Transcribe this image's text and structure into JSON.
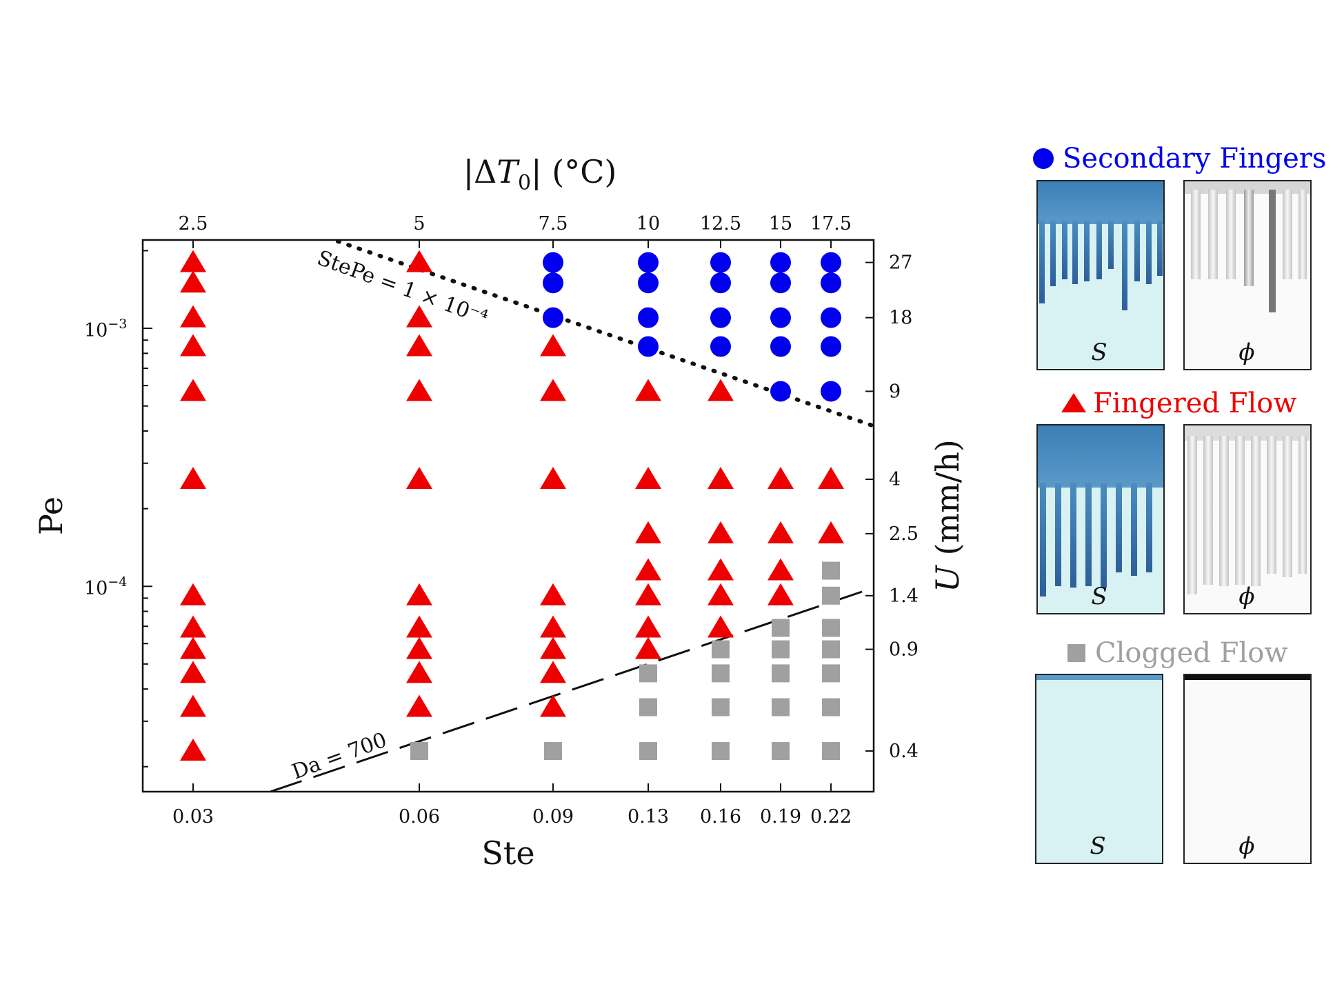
{
  "chart_data": {
    "type": "scatter",
    "x_axis": {
      "label": "Ste",
      "ticks": [
        "0.03",
        "0.06",
        "0.09",
        "0.13",
        "0.16",
        "0.19",
        "0.22"
      ],
      "scale": "log"
    },
    "top_axis": {
      "label": "|ΔT₀| (°C)",
      "ticks": [
        "2.5",
        "5",
        "7.5",
        "10",
        "12.5",
        "15",
        "17.5"
      ]
    },
    "y_axis": {
      "label": "Pe",
      "scale": "log",
      "ticks": [
        "10⁻³",
        "10⁻⁴"
      ],
      "ylim": [
        1.6e-05,
        0.0022
      ]
    },
    "right_axis": {
      "label": "U (mm/h)",
      "ticks": [
        "27",
        "18",
        "9",
        "4",
        "2.5",
        "1.4",
        "0.9",
        "0.4"
      ]
    },
    "series": [
      {
        "name": "Secondary Fingers",
        "color": "#0000ee",
        "marker": "circle",
        "points": [
          {
            "x": 0.09,
            "y": 0.0018
          },
          {
            "x": 0.09,
            "y": 0.0015
          },
          {
            "x": 0.09,
            "y": 0.0011
          },
          {
            "x": 0.13,
            "y": 0.0018
          },
          {
            "x": 0.13,
            "y": 0.0015
          },
          {
            "x": 0.13,
            "y": 0.0011
          },
          {
            "x": 0.13,
            "y": 0.00085
          },
          {
            "x": 0.16,
            "y": 0.0018
          },
          {
            "x": 0.16,
            "y": 0.0015
          },
          {
            "x": 0.16,
            "y": 0.0011
          },
          {
            "x": 0.16,
            "y": 0.00085
          },
          {
            "x": 0.19,
            "y": 0.0018
          },
          {
            "x": 0.19,
            "y": 0.0015
          },
          {
            "x": 0.19,
            "y": 0.0011
          },
          {
            "x": 0.19,
            "y": 0.00085
          },
          {
            "x": 0.19,
            "y": 0.00057
          },
          {
            "x": 0.22,
            "y": 0.0018
          },
          {
            "x": 0.22,
            "y": 0.0015
          },
          {
            "x": 0.22,
            "y": 0.0011
          },
          {
            "x": 0.22,
            "y": 0.00085
          },
          {
            "x": 0.22,
            "y": 0.00057
          }
        ]
      },
      {
        "name": "Fingered Flow",
        "color": "#ee0000",
        "marker": "triangle",
        "points": [
          {
            "x": 0.03,
            "y": 0.0018
          },
          {
            "x": 0.03,
            "y": 0.0015
          },
          {
            "x": 0.03,
            "y": 0.0011
          },
          {
            "x": 0.03,
            "y": 0.00085
          },
          {
            "x": 0.03,
            "y": 0.00057
          },
          {
            "x": 0.03,
            "y": 0.00026
          },
          {
            "x": 0.03,
            "y": 9.2e-05
          },
          {
            "x": 0.03,
            "y": 6.9e-05
          },
          {
            "x": 0.03,
            "y": 5.7e-05
          },
          {
            "x": 0.03,
            "y": 4.6e-05
          },
          {
            "x": 0.03,
            "y": 3.4e-05
          },
          {
            "x": 0.03,
            "y": 2.3e-05
          },
          {
            "x": 0.06,
            "y": 0.0018
          },
          {
            "x": 0.06,
            "y": 0.0011
          },
          {
            "x": 0.06,
            "y": 0.00085
          },
          {
            "x": 0.06,
            "y": 0.00057
          },
          {
            "x": 0.06,
            "y": 0.00026
          },
          {
            "x": 0.06,
            "y": 9.2e-05
          },
          {
            "x": 0.06,
            "y": 6.9e-05
          },
          {
            "x": 0.06,
            "y": 5.7e-05
          },
          {
            "x": 0.06,
            "y": 4.6e-05
          },
          {
            "x": 0.06,
            "y": 3.4e-05
          },
          {
            "x": 0.09,
            "y": 0.00085
          },
          {
            "x": 0.09,
            "y": 0.00057
          },
          {
            "x": 0.09,
            "y": 0.00026
          },
          {
            "x": 0.09,
            "y": 9.2e-05
          },
          {
            "x": 0.09,
            "y": 6.9e-05
          },
          {
            "x": 0.09,
            "y": 5.7e-05
          },
          {
            "x": 0.09,
            "y": 4.6e-05
          },
          {
            "x": 0.09,
            "y": 3.4e-05
          },
          {
            "x": 0.13,
            "y": 0.00057
          },
          {
            "x": 0.13,
            "y": 0.00026
          },
          {
            "x": 0.13,
            "y": 0.00016
          },
          {
            "x": 0.13,
            "y": 0.000115
          },
          {
            "x": 0.13,
            "y": 9.2e-05
          },
          {
            "x": 0.13,
            "y": 6.9e-05
          },
          {
            "x": 0.13,
            "y": 5.7e-05
          },
          {
            "x": 0.16,
            "y": 0.00057
          },
          {
            "x": 0.16,
            "y": 0.00026
          },
          {
            "x": 0.16,
            "y": 0.00016
          },
          {
            "x": 0.16,
            "y": 0.000115
          },
          {
            "x": 0.16,
            "y": 9.2e-05
          },
          {
            "x": 0.16,
            "y": 6.9e-05
          },
          {
            "x": 0.19,
            "y": 0.00026
          },
          {
            "x": 0.19,
            "y": 0.00016
          },
          {
            "x": 0.19,
            "y": 0.000115
          },
          {
            "x": 0.19,
            "y": 9.2e-05
          },
          {
            "x": 0.22,
            "y": 0.00026
          },
          {
            "x": 0.22,
            "y": 0.00016
          }
        ]
      },
      {
        "name": "Clogged Flow",
        "color": "#a0a0a0",
        "marker": "square",
        "points": [
          {
            "x": 0.06,
            "y": 2.3e-05
          },
          {
            "x": 0.09,
            "y": 2.3e-05
          },
          {
            "x": 0.13,
            "y": 4.6e-05
          },
          {
            "x": 0.13,
            "y": 3.4e-05
          },
          {
            "x": 0.13,
            "y": 2.3e-05
          },
          {
            "x": 0.16,
            "y": 5.7e-05
          },
          {
            "x": 0.16,
            "y": 4.6e-05
          },
          {
            "x": 0.16,
            "y": 3.4e-05
          },
          {
            "x": 0.16,
            "y": 2.3e-05
          },
          {
            "x": 0.19,
            "y": 6.9e-05
          },
          {
            "x": 0.19,
            "y": 5.7e-05
          },
          {
            "x": 0.19,
            "y": 4.6e-05
          },
          {
            "x": 0.19,
            "y": 3.4e-05
          },
          {
            "x": 0.19,
            "y": 2.3e-05
          },
          {
            "x": 0.22,
            "y": 0.000115
          },
          {
            "x": 0.22,
            "y": 9.2e-05
          },
          {
            "x": 0.22,
            "y": 6.9e-05
          },
          {
            "x": 0.22,
            "y": 5.7e-05
          },
          {
            "x": 0.22,
            "y": 4.6e-05
          },
          {
            "x": 0.22,
            "y": 3.4e-05
          },
          {
            "x": 0.22,
            "y": 2.3e-05
          }
        ]
      }
    ],
    "lines": [
      {
        "label": "StePe = 1 × 10⁻⁴",
        "style": "dotted",
        "equation": "Pe = 1e-4 / Ste"
      },
      {
        "label": "Da = 700",
        "style": "dashed"
      }
    ],
    "legend": {
      "placement": "right",
      "entries": [
        "Secondary Fingers",
        "Fingered Flow",
        "Clogged Flow"
      ]
    }
  },
  "panels": {
    "saturation_label": "S",
    "phi_label": "ϕ"
  }
}
